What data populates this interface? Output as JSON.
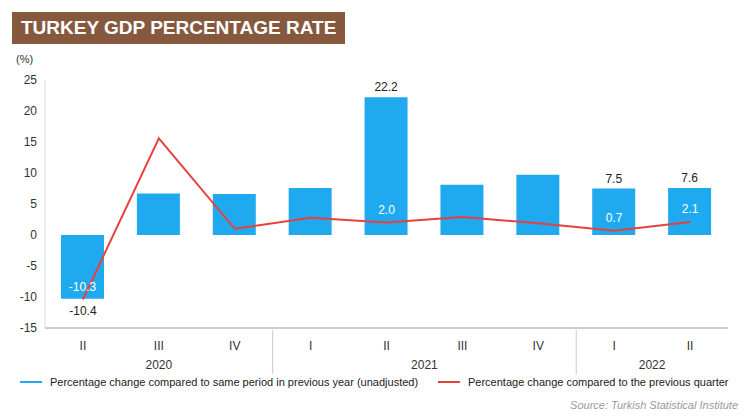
{
  "chart_data": {
    "type": "bar",
    "title": "TURKEY GDP PERCENTAGE RATE",
    "y_label": "(%)",
    "categories": [
      "II",
      "III",
      "IV",
      "I",
      "II",
      "III",
      "IV",
      "I",
      "II"
    ],
    "category_groups": [
      "2020",
      "2020",
      "2020",
      "2021",
      "2021",
      "2021",
      "2021",
      "2022",
      "2022"
    ],
    "series": [
      {
        "name": "Percentage change compared to same period in previous year (unadjusted)",
        "type": "bar",
        "color": "#1fa9ef",
        "values": [
          -10.3,
          6.7,
          6.6,
          7.6,
          22.2,
          8.1,
          9.7,
          7.5,
          7.6
        ],
        "data_labels": true,
        "value_labels": [
          "-10.3",
          null,
          null,
          null,
          "22.2",
          null,
          null,
          "7.5",
          "7.6"
        ]
      },
      {
        "name": "Percentage change compared to the previous quarter",
        "type": "line",
        "color": "#e8413c",
        "marker": "none",
        "line_style": "solid",
        "values": [
          -10.4,
          15.6,
          1.0,
          2.8,
          2.0,
          2.9,
          1.9,
          0.7,
          2.1
        ],
        "data_labels": true,
        "value_labels": [
          "-10.4",
          null,
          null,
          null,
          "2.0",
          null,
          null,
          "0.7",
          "2.1"
        ]
      }
    ],
    "ylim": [
      -15,
      25
    ],
    "yticks": [
      -15,
      -10,
      -5,
      0,
      5,
      10,
      15,
      20,
      25
    ],
    "grid": false,
    "legend": "bottom",
    "source": "Source: Turkish Statistical Institute"
  }
}
